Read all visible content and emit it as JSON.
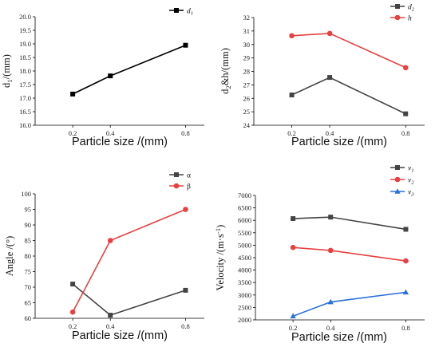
{
  "chart_data": [
    {
      "type": "line",
      "xlabel": "Particle size /(mm)",
      "ylabel": "d1/(mm)",
      "x": [
        0.2,
        0.4,
        0.8
      ],
      "xticks": [
        "0.2",
        "0.4",
        "0.8"
      ],
      "ylim": [
        16.0,
        20.0
      ],
      "yticks": [
        "16.0",
        "16.5",
        "17.0",
        "17.5",
        "18.0",
        "18.5",
        "19.0",
        "19.5",
        "20.0"
      ],
      "legend_position": "top-right",
      "series": [
        {
          "name": "d1",
          "values": [
            17.15,
            17.82,
            18.95
          ],
          "color": "#000000",
          "marker": "square"
        }
      ]
    },
    {
      "type": "line",
      "xlabel": "Particle size /(mm)",
      "ylabel": "d2&h/(mm)",
      "x": [
        0.2,
        0.4,
        0.8
      ],
      "xticks": [
        "0.2",
        "0.4",
        "0.8"
      ],
      "ylim": [
        24,
        32
      ],
      "yticks": [
        "24",
        "25",
        "26",
        "27",
        "28",
        "29",
        "30",
        "31",
        "32"
      ],
      "legend_position": "top-right",
      "series": [
        {
          "name": "d2",
          "values": [
            26.25,
            27.55,
            24.85
          ],
          "color": "#444444",
          "marker": "square"
        },
        {
          "name": "h",
          "values": [
            30.65,
            30.82,
            28.28
          ],
          "color": "#e84040",
          "marker": "circle"
        }
      ]
    },
    {
      "type": "line",
      "xlabel": "Particle size /(mm)",
      "ylabel": "Angle /(°)",
      "x": [
        0.2,
        0.4,
        0.8
      ],
      "xticks": [
        "0.2",
        "0.4",
        "0.8"
      ],
      "ylim": [
        60,
        100
      ],
      "yticks": [
        "60",
        "65",
        "70",
        "75",
        "80",
        "85",
        "90",
        "95",
        "100"
      ],
      "legend_position": "top-right",
      "series": [
        {
          "name": "α",
          "values": [
            71,
            61,
            69
          ],
          "color": "#444444",
          "marker": "square"
        },
        {
          "name": "β",
          "values": [
            62,
            85,
            95
          ],
          "color": "#e84040",
          "marker": "circle"
        }
      ]
    },
    {
      "type": "line",
      "xlabel": "Particle size /(mm)",
      "ylabel": "Velocity /(m·s-1)",
      "x": [
        0.2,
        0.4,
        0.8
      ],
      "xticks": [
        "0.2",
        "0.4",
        "0.8"
      ],
      "ylim": [
        2000,
        7000
      ],
      "yticks": [
        "2000",
        "2500",
        "3000",
        "3500",
        "4000",
        "4500",
        "5000",
        "5500",
        "6000",
        "6500",
        "7000"
      ],
      "legend_position": "top-right",
      "series": [
        {
          "name": "v1",
          "values": [
            6070,
            6130,
            5640
          ],
          "color": "#444444",
          "marker": "square"
        },
        {
          "name": "v2",
          "values": [
            4910,
            4790,
            4370
          ],
          "color": "#e84040",
          "marker": "circle"
        },
        {
          "name": "v3",
          "values": [
            2150,
            2720,
            3110
          ],
          "color": "#2a6fdb",
          "marker": "triangle"
        }
      ]
    }
  ]
}
